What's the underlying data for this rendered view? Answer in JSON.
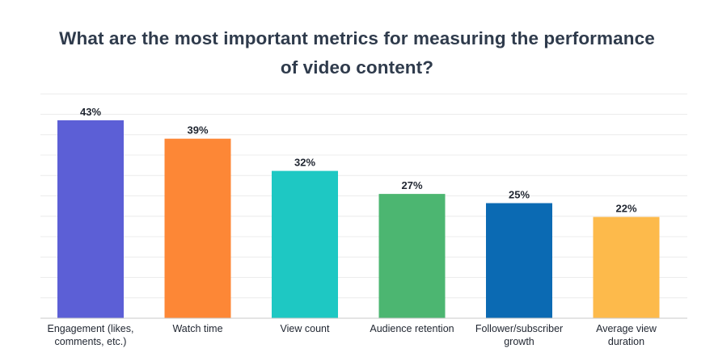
{
  "chart_data": {
    "type": "bar",
    "title_lines": [
      "What are the most important metrics for measuring the performance",
      "of video content?"
    ],
    "categories": [
      [
        "Engagement (likes,",
        "comments, etc.)"
      ],
      [
        "Watch time"
      ],
      [
        "View count"
      ],
      [
        "Audience retention"
      ],
      [
        "Follower/subscriber",
        "growth"
      ],
      [
        "Average view",
        "duration"
      ]
    ],
    "values": [
      43,
      39,
      32,
      27,
      25,
      22
    ],
    "value_labels": [
      "43%",
      "39%",
      "32%",
      "27%",
      "25%",
      "22%"
    ],
    "colors": [
      "#5c5fd6",
      "#fd8736",
      "#1ec8c3",
      "#4cb671",
      "#0b6ab3",
      "#fdba4b"
    ],
    "ylim": [
      0,
      50
    ],
    "grid": true,
    "legend": "none"
  }
}
